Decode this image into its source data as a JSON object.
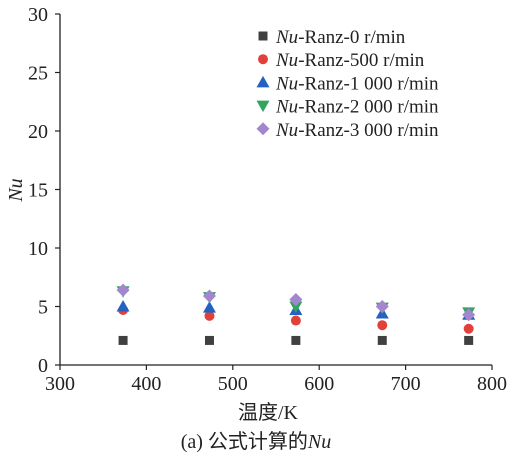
{
  "chart_data": {
    "type": "scatter",
    "title": "",
    "xlabel": "温度/K",
    "ylabel": "Nu",
    "xlim": [
      300,
      800
    ],
    "ylim": [
      0,
      30
    ],
    "xticks": [
      300,
      400,
      500,
      600,
      700,
      800
    ],
    "yticks": [
      0,
      5,
      10,
      15,
      20,
      25,
      30
    ],
    "grid": false,
    "legend": "top-right",
    "x": [
      373,
      473,
      573,
      673,
      773
    ],
    "series": [
      {
        "name": "Nu-Ranz-0 r/min",
        "marker": "square",
        "color": "#404040",
        "values": [
          2.1,
          2.1,
          2.1,
          2.1,
          2.1
        ]
      },
      {
        "name": "Nu-Ranz-500 r/min",
        "marker": "circle",
        "color": "#e2413b",
        "values": [
          4.7,
          4.2,
          3.8,
          3.4,
          3.1
        ]
      },
      {
        "name": "Nu-Ranz-1 000 r/min",
        "marker": "triangle-up",
        "color": "#2462c2",
        "values": [
          5.0,
          4.9,
          4.7,
          4.4,
          4.3
        ]
      },
      {
        "name": "Nu-Ranz-2 000 r/min",
        "marker": "triangle-down",
        "color": "#31a55e",
        "values": [
          6.3,
          5.8,
          5.0,
          4.9,
          4.5
        ]
      },
      {
        "name": "Nu-Ranz-3 000 r/min",
        "marker": "diamond",
        "color": "#a287cf",
        "values": [
          6.4,
          5.9,
          5.6,
          5.0,
          4.3
        ]
      }
    ]
  },
  "caption": {
    "prefix": "(a) 公式计算的",
    "variable": "Nu"
  }
}
